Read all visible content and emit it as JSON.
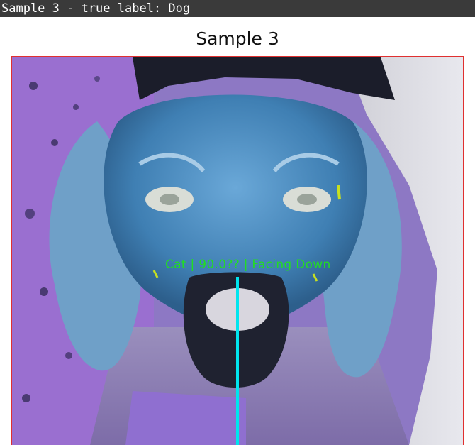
{
  "window": {
    "title": "Sample 3 - true label: Dog"
  },
  "figure": {
    "title": "Sample 3"
  },
  "prediction": {
    "label": "Cat | 90.0?? | Facing Down",
    "text_color": "#22dd22",
    "line_color": "#00e5ee"
  },
  "colors": {
    "frame_border": "#e03030",
    "header_bg": "#3a3a3a"
  }
}
